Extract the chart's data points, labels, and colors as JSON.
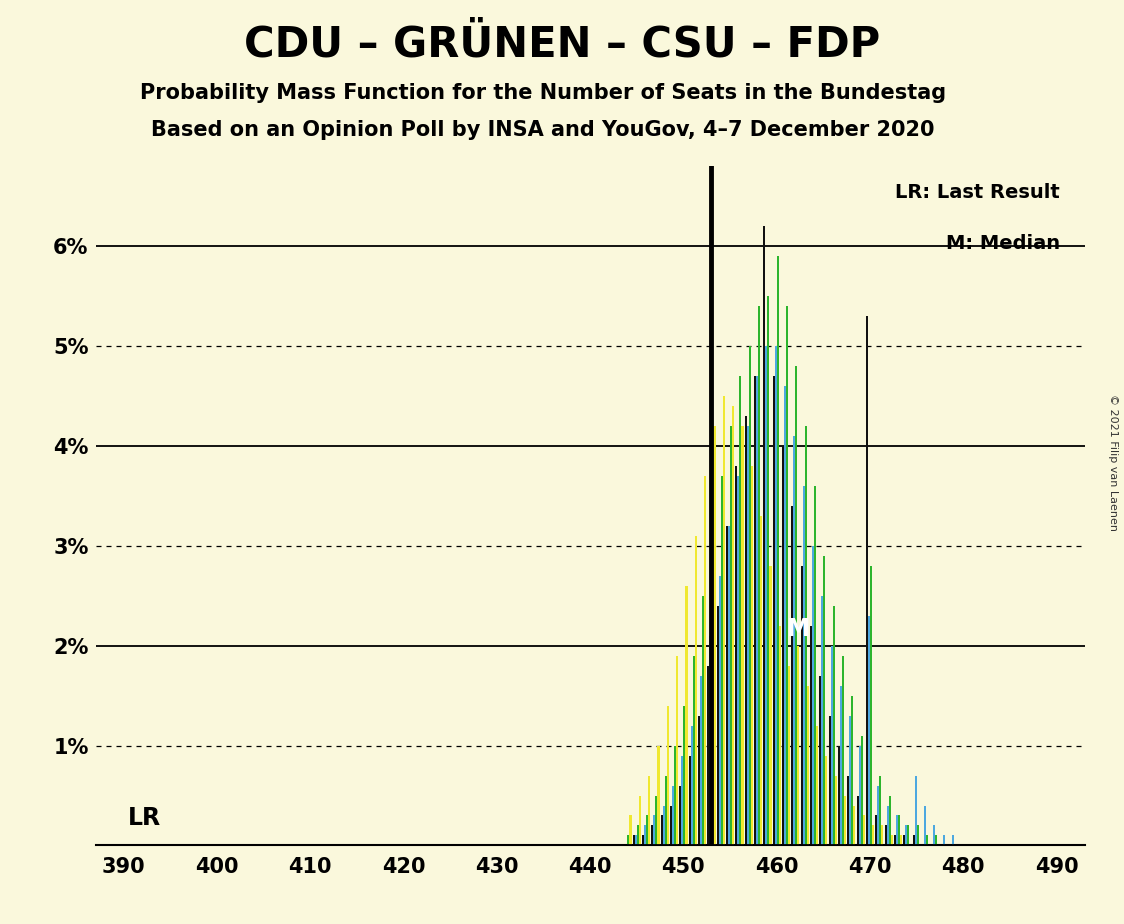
{
  "title": "CDU – GRÜNEN – CSU – FDP",
  "subtitle1": "Probability Mass Function for the Number of Seats in the Bundestag",
  "subtitle2": "Based on an Opinion Poll by INSA and YouGov, 4–7 December 2020",
  "copyright": "© 2021 Filip van Laenen",
  "legend_lr": "LR: Last Result",
  "legend_m": "M: Median",
  "lr_label": "LR",
  "m_label": "M",
  "background_color": "#faf8dc",
  "bar_colors": [
    "#111111",
    "#4da8e0",
    "#2db52d",
    "#f0e830"
  ],
  "xlim": [
    387,
    493
  ],
  "ylim": [
    0.0,
    0.068
  ],
  "ytick_vals": [
    0.0,
    0.01,
    0.02,
    0.03,
    0.04,
    0.05,
    0.06
  ],
  "ytick_labels": [
    "",
    "1%",
    "2%",
    "3%",
    "4%",
    "5%",
    "6%"
  ],
  "xtick_vals": [
    390,
    400,
    410,
    420,
    430,
    440,
    450,
    460,
    470,
    480,
    490
  ],
  "lr_seat": 453,
  "median_seat": 462,
  "seats": [
    444,
    445,
    446,
    447,
    448,
    449,
    450,
    451,
    452,
    453,
    454,
    455,
    456,
    457,
    458,
    459,
    460,
    461,
    462,
    463,
    464,
    465,
    466,
    467,
    468,
    469,
    470,
    471,
    472,
    473,
    474,
    475,
    476,
    477,
    478,
    479,
    480,
    481,
    482,
    483,
    484,
    485,
    486,
    487,
    488,
    489,
    490
  ],
  "pmf_black": [
    0.0,
    0.001,
    0.001,
    0.002,
    0.003,
    0.004,
    0.006,
    0.009,
    0.013,
    0.018,
    0.024,
    0.032,
    0.038,
    0.043,
    0.047,
    0.062,
    0.047,
    0.04,
    0.034,
    0.028,
    0.022,
    0.017,
    0.013,
    0.01,
    0.007,
    0.005,
    0.053,
    0.003,
    0.002,
    0.001,
    0.001,
    0.001,
    0.0,
    0.0,
    0.0,
    0.0,
    0.0,
    0.0,
    0.0,
    0.0,
    0.0,
    0.0,
    0.0,
    0.0,
    0.0,
    0.0,
    0.0
  ],
  "pmf_blue": [
    0.0,
    0.001,
    0.002,
    0.003,
    0.004,
    0.006,
    0.009,
    0.012,
    0.017,
    0.021,
    0.027,
    0.032,
    0.037,
    0.042,
    0.047,
    0.05,
    0.05,
    0.046,
    0.041,
    0.036,
    0.03,
    0.025,
    0.02,
    0.016,
    0.013,
    0.01,
    0.023,
    0.006,
    0.004,
    0.003,
    0.002,
    0.007,
    0.004,
    0.002,
    0.001,
    0.001,
    0.0,
    0.0,
    0.0,
    0.0,
    0.0,
    0.0,
    0.0,
    0.0,
    0.0,
    0.0,
    0.0
  ],
  "pmf_green": [
    0.001,
    0.002,
    0.003,
    0.005,
    0.007,
    0.01,
    0.014,
    0.019,
    0.025,
    0.031,
    0.037,
    0.042,
    0.047,
    0.05,
    0.054,
    0.055,
    0.059,
    0.054,
    0.048,
    0.042,
    0.036,
    0.029,
    0.024,
    0.019,
    0.015,
    0.011,
    0.028,
    0.007,
    0.005,
    0.003,
    0.002,
    0.002,
    0.001,
    0.001,
    0.0,
    0.0,
    0.0,
    0.0,
    0.0,
    0.0,
    0.0,
    0.0,
    0.0,
    0.0,
    0.0,
    0.0,
    0.0
  ],
  "pmf_yellow": [
    0.003,
    0.005,
    0.007,
    0.01,
    0.014,
    0.019,
    0.026,
    0.031,
    0.037,
    0.042,
    0.045,
    0.044,
    0.042,
    0.038,
    0.033,
    0.028,
    0.022,
    0.018,
    0.02,
    0.016,
    0.012,
    0.009,
    0.007,
    0.005,
    0.004,
    0.003,
    0.002,
    0.002,
    0.001,
    0.001,
    0.0,
    0.0,
    0.0,
    0.0,
    0.0,
    0.0,
    0.0,
    0.0,
    0.0,
    0.0,
    0.0,
    0.0,
    0.0,
    0.0,
    0.0,
    0.0,
    0.0
  ]
}
